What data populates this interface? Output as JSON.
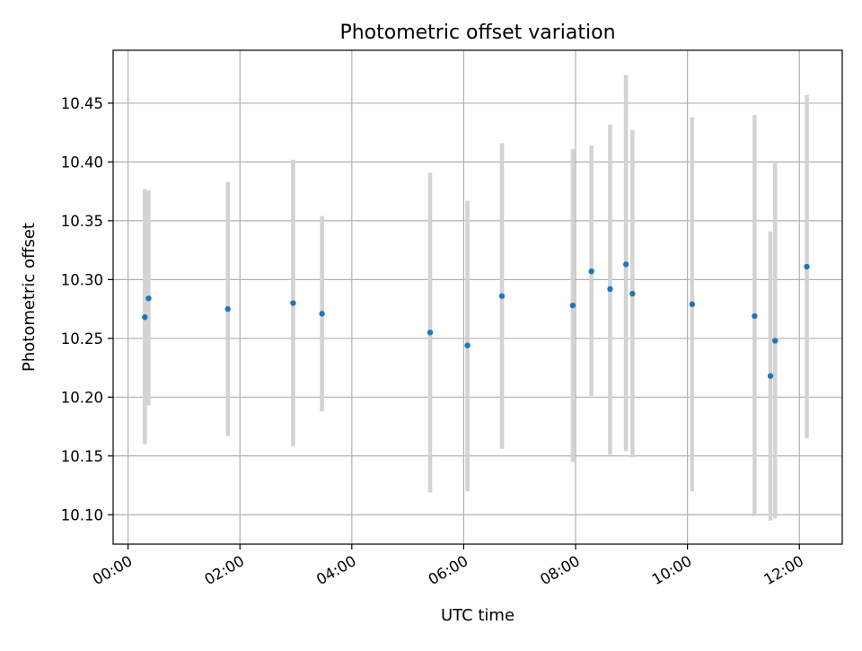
{
  "chart_data": {
    "type": "scatter",
    "title": "Photometric offset variation",
    "xlabel": "UTC time",
    "ylabel": "Photometric offset",
    "x_axis": "time",
    "xlim": [
      "-00:16",
      "12:46"
    ],
    "ylim": [
      10.075,
      10.495
    ],
    "x_ticks": [
      "00:00",
      "02:00",
      "04:00",
      "06:00",
      "08:00",
      "10:00",
      "12:00"
    ],
    "y_ticks": [
      "10.10",
      "10.15",
      "10.20",
      "10.25",
      "10.30",
      "10.35",
      "10.40",
      "10.45"
    ],
    "grid": true,
    "legend": "none",
    "colors": {
      "point": "#1f77b4",
      "errorbar": "#d3d3d3",
      "grid": "#b0b0b0"
    },
    "points": [
      {
        "x": "00:18",
        "y": 10.268,
        "ylow": 10.16,
        "yhigh": 10.377
      },
      {
        "x": "00:22",
        "y": 10.284,
        "ylow": 10.193,
        "yhigh": 10.376
      },
      {
        "x": "01:47",
        "y": 10.275,
        "ylow": 10.167,
        "yhigh": 10.383
      },
      {
        "x": "02:57",
        "y": 10.28,
        "ylow": 10.158,
        "yhigh": 10.402
      },
      {
        "x": "03:28",
        "y": 10.271,
        "ylow": 10.188,
        "yhigh": 10.354
      },
      {
        "x": "05:24",
        "y": 10.255,
        "ylow": 10.119,
        "yhigh": 10.391
      },
      {
        "x": "06:04",
        "y": 10.244,
        "ylow": 10.12,
        "yhigh": 10.367
      },
      {
        "x": "06:41",
        "y": 10.286,
        "ylow": 10.156,
        "yhigh": 10.416
      },
      {
        "x": "07:57",
        "y": 10.278,
        "ylow": 10.145,
        "yhigh": 10.411
      },
      {
        "x": "08:17",
        "y": 10.307,
        "ylow": 10.201,
        "yhigh": 10.414
      },
      {
        "x": "08:37",
        "y": 10.292,
        "ylow": 10.151,
        "yhigh": 10.432
      },
      {
        "x": "08:54",
        "y": 10.313,
        "ylow": 10.154,
        "yhigh": 10.474
      },
      {
        "x": "09:01",
        "y": 10.288,
        "ylow": 10.149,
        "yhigh": 10.427
      },
      {
        "x": "10:05",
        "y": 10.279,
        "ylow": 10.12,
        "yhigh": 10.438
      },
      {
        "x": "11:12",
        "y": 10.269,
        "ylow": 10.099,
        "yhigh": 10.44
      },
      {
        "x": "11:29",
        "y": 10.218,
        "ylow": 10.095,
        "yhigh": 10.341
      },
      {
        "x": "11:34",
        "y": 10.248,
        "ylow": 10.097,
        "yhigh": 10.399
      },
      {
        "x": "12:08",
        "y": 10.311,
        "ylow": 10.165,
        "yhigh": 10.457
      }
    ]
  }
}
